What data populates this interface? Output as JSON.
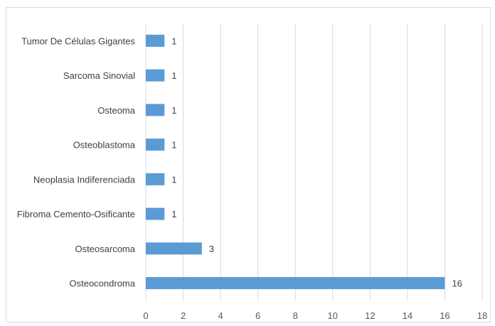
{
  "chart_data": {
    "type": "bar",
    "orientation": "horizontal",
    "categories": [
      "Tumor De Células Gigantes",
      "Sarcoma Sinovial",
      "Osteoma",
      "Osteoblastoma",
      "Neoplasia Indiferenciada",
      "Fibroma Cemento-Osificante",
      "Osteosarcoma",
      "Osteocondroma"
    ],
    "values": [
      1,
      1,
      1,
      1,
      1,
      1,
      3,
      16
    ],
    "data_labels": [
      "1",
      "1",
      "1",
      "1",
      "1",
      "1",
      "3",
      "16"
    ],
    "x_ticks": [
      "0",
      "2",
      "4",
      "6",
      "8",
      "10",
      "12",
      "14",
      "16",
      "18"
    ],
    "xlim": [
      0,
      18
    ],
    "grid": "vertical",
    "legend": "none",
    "bar_color": "#5b9bd5",
    "grid_color": "#d9d9d9"
  }
}
